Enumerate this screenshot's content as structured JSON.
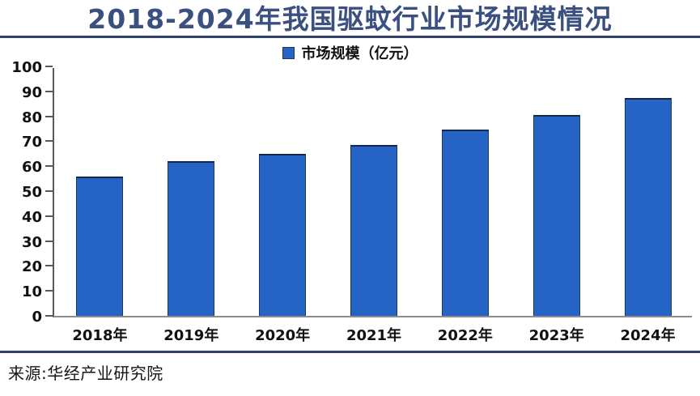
{
  "page": {
    "title": "2018-2024年我国驱蚊行业市场规模情况",
    "source": "来源:华经产业研究院"
  },
  "legend": {
    "label": "市场规模（亿元）",
    "swatch": "blue-square"
  },
  "colors": {
    "title_text": "#3A5080",
    "divider": "#2F3F70",
    "bar_fill": "#2564C4",
    "bar_border": "#1A3A66",
    "bar_top": "#15294E",
    "axis_line": "#595959",
    "baseline": "#8C8C8C"
  },
  "chart_data": {
    "type": "bar",
    "title": "2018-2024年我国驱蚊行业市场规模情况",
    "legend_entries": [
      "市场规模（亿元）"
    ],
    "legend_position": "top-center",
    "categories": [
      "2018年",
      "2019年",
      "2020年",
      "2021年",
      "2022年",
      "2023年",
      "2024年"
    ],
    "values": [
      56,
      62,
      65,
      68.5,
      74.8,
      80.5,
      87.5
    ],
    "xlabel": "",
    "ylabel": "",
    "ylim": [
      0,
      100
    ],
    "ytick_step": 10,
    "grid": false
  }
}
